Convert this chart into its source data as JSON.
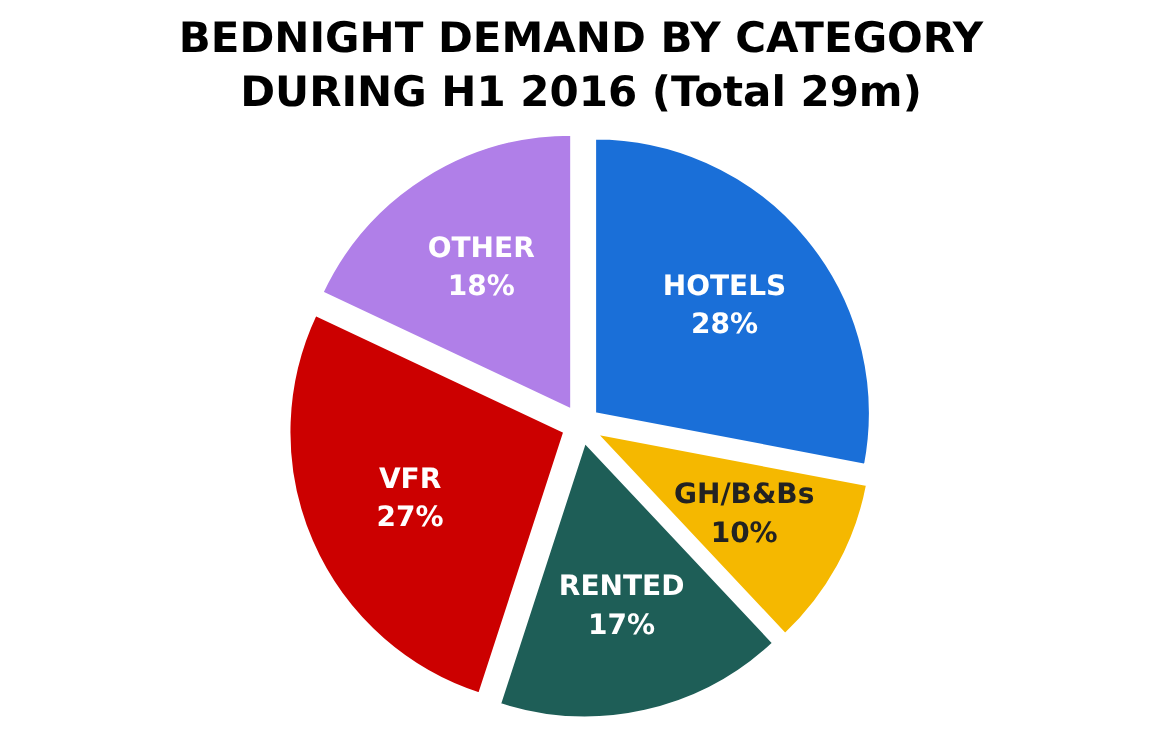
{
  "chart_data": {
    "type": "pie",
    "title": "BEDNIGHT DEMAND BY CATEGORY",
    "subtitle": "DURING H1 2016 (Total 29m)",
    "categories": [
      "HOTELS",
      "GH/B&Bs",
      "RENTED",
      "VFR",
      "OTHER"
    ],
    "values": [
      28,
      10,
      17,
      27,
      18
    ],
    "colors": [
      "#1a6fd8",
      "#f5b800",
      "#1e5e57",
      "#cc0000",
      "#b07fe8"
    ],
    "value_labels": [
      "28%",
      "10%",
      "17%",
      "27%",
      "18%"
    ]
  }
}
